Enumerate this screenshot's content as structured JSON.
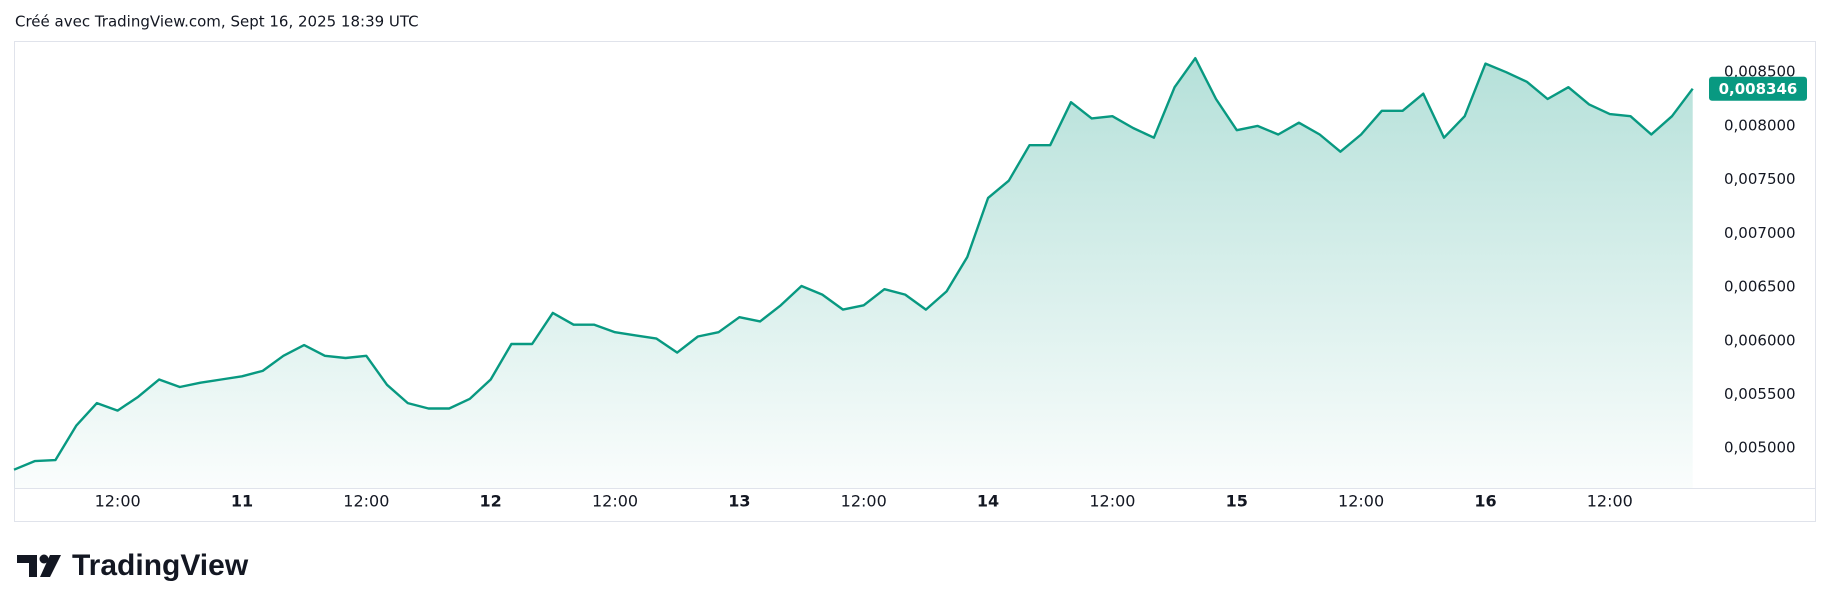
{
  "chart_data": {
    "type": "area",
    "header": "Créé avec TradingView.com, Sept 16, 2025 18:39 UTC",
    "brand": "TradingView",
    "series": [
      {
        "color": "#089981",
        "values": [
          0.0048,
          0.00488,
          0.00489,
          0.00521,
          0.00542,
          0.00535,
          0.00548,
          0.00564,
          0.00557,
          0.00561,
          0.00564,
          0.00567,
          0.00572,
          0.00586,
          0.00596,
          0.00586,
          0.00584,
          0.00586,
          0.00559,
          0.00542,
          0.00537,
          0.00537,
          0.00546,
          0.00564,
          0.00597,
          0.00597,
          0.00626,
          0.00615,
          0.00615,
          0.00608,
          0.00605,
          0.00602,
          0.00589,
          0.00604,
          0.00608,
          0.00622,
          0.00618,
          0.00633,
          0.00651,
          0.00643,
          0.00629,
          0.00633,
          0.00648,
          0.00643,
          0.00629,
          0.00646,
          0.00678,
          0.00733,
          0.00749,
          0.00782,
          0.00782,
          0.00822,
          0.00807,
          0.00809,
          0.00798,
          0.00789,
          0.00836,
          0.00863,
          0.00825,
          0.00796,
          0.008,
          0.00792,
          0.00803,
          0.00792,
          0.00776,
          0.00792,
          0.00814,
          0.00814,
          0.0083,
          0.00789,
          0.00809,
          0.00858,
          0.0085,
          0.00841,
          0.00825,
          0.00836,
          0.0082,
          0.00811,
          0.00809,
          0.00792,
          0.00809,
          0.008346
        ]
      }
    ],
    "price_label": {
      "value": 0.008346,
      "label": "0,008346"
    },
    "xlim": [
      0,
      81.4
    ],
    "xticks": [
      {
        "value": 5,
        "label": "12:00"
      },
      {
        "value": 11,
        "label": "11"
      },
      {
        "value": 17,
        "label": "12:00"
      },
      {
        "value": 23,
        "label": "12"
      },
      {
        "value": 29,
        "label": "12:00"
      },
      {
        "value": 35,
        "label": "13"
      },
      {
        "value": 41,
        "label": "12:00"
      },
      {
        "value": 47,
        "label": "14"
      },
      {
        "value": 53,
        "label": "12:00"
      },
      {
        "value": 59,
        "label": "15"
      },
      {
        "value": 65,
        "label": "12:00"
      },
      {
        "value": 71,
        "label": "16"
      },
      {
        "value": 77,
        "label": "12:00"
      }
    ],
    "ylim": [
      0.00463,
      0.00879
    ],
    "yticks": [
      {
        "value": 0.0085,
        "label": "0,008500"
      },
      {
        "value": 0.008,
        "label": "0,008000"
      },
      {
        "value": 0.0075,
        "label": "0,007500"
      },
      {
        "value": 0.007,
        "label": "0,007000"
      },
      {
        "value": 0.0065,
        "label": "0,006500"
      },
      {
        "value": 0.006,
        "label": "0,006000"
      },
      {
        "value": 0.0055,
        "label": "0,005500"
      },
      {
        "value": 0.005,
        "label": "0,005000"
      }
    ],
    "grid": false
  }
}
